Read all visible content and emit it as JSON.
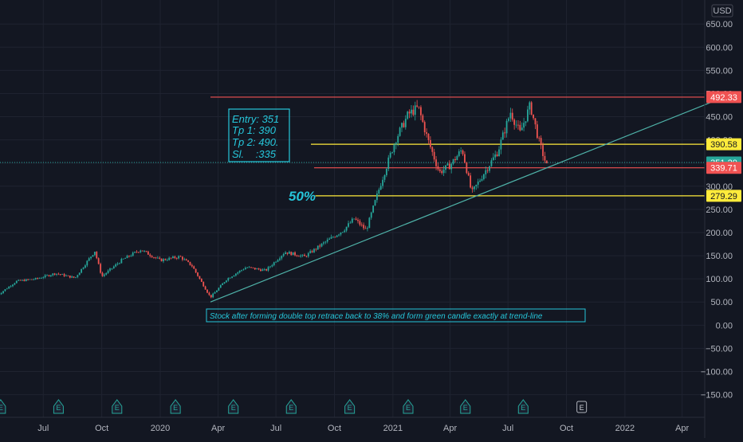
{
  "chart_data": {
    "type": "candlestick",
    "currency": "USD",
    "ylim": [
      -170,
      700
    ],
    "y_ticks": [
      650,
      600,
      550,
      500,
      450,
      400,
      350,
      300,
      250,
      200,
      150,
      100,
      50,
      0,
      -50,
      -100,
      -150
    ],
    "y_tick_labels": [
      "650.00",
      "600.00",
      "550.00",
      "500.00",
      "450.00",
      "400.00",
      "350.00",
      "300.00",
      "250.00",
      "200.00",
      "150.00",
      "100.00",
      "50.00",
      "0.00",
      "−50.00",
      "−100.00",
      "−150.00"
    ],
    "x_labels": [
      "Jul",
      "Oct",
      "2020",
      "Apr",
      "Jul",
      "Oct",
      "2021",
      "Apr",
      "Jul",
      "Oct",
      "2022",
      "Apr"
    ],
    "x_label_dates": [
      "2019-07-01",
      "2019-10-01",
      "2020-01-01",
      "2020-04-01",
      "2020-07-01",
      "2020-10-01",
      "2021-01-01",
      "2021-04-01",
      "2021-07-01",
      "2021-10-01",
      "2022-01-01",
      "2022-04-01"
    ],
    "price_path": [
      [
        "2019-04-20",
        65
      ],
      [
        "2019-05-20",
        95
      ],
      [
        "2019-06-20",
        100
      ],
      [
        "2019-07-20",
        112
      ],
      [
        "2019-08-20",
        102
      ],
      [
        "2019-09-20",
        160
      ],
      [
        "2019-10-01",
        105
      ],
      [
        "2019-11-01",
        140
      ],
      [
        "2019-12-01",
        163
      ],
      [
        "2020-01-01",
        140
      ],
      [
        "2020-02-01",
        148
      ],
      [
        "2020-02-20",
        128
      ],
      [
        "2020-03-20",
        60
      ],
      [
        "2020-04-15",
        100
      ],
      [
        "2020-05-15",
        125
      ],
      [
        "2020-06-15",
        118
      ],
      [
        "2020-07-15",
        158
      ],
      [
        "2020-08-15",
        148
      ],
      [
        "2020-09-15",
        178
      ],
      [
        "2020-10-15",
        205
      ],
      [
        "2020-11-01",
        230
      ],
      [
        "2020-11-20",
        205
      ],
      [
        "2020-12-15",
        315
      ],
      [
        "2021-01-05",
        400
      ],
      [
        "2021-01-25",
        455
      ],
      [
        "2021-02-10",
        470
      ],
      [
        "2021-02-25",
        400
      ],
      [
        "2021-03-15",
        330
      ],
      [
        "2021-04-01",
        345
      ],
      [
        "2021-04-20",
        380
      ],
      [
        "2021-05-05",
        285
      ],
      [
        "2021-05-25",
        330
      ],
      [
        "2021-06-15",
        375
      ],
      [
        "2021-07-05",
        460
      ],
      [
        "2021-07-20",
        415
      ],
      [
        "2021-08-05",
        475
      ],
      [
        "2021-08-20",
        390
      ],
      [
        "2021-09-01",
        340
      ]
    ],
    "levels": [
      {
        "value": 492.33,
        "label": "492.33",
        "color": "#f05252"
      },
      {
        "value": 390.58,
        "label": "390.58",
        "color": "#ffeb3b"
      },
      {
        "value": 351.2,
        "label": "351.20",
        "color": "#26a69a"
      },
      {
        "value": 339.71,
        "label": "339.71",
        "color": "#f05252"
      },
      {
        "value": 279.29,
        "label": "279.29",
        "color": "#ffeb3b"
      }
    ],
    "trend_line": {
      "from": [
        "2020-03-20",
        50
      ],
      "to": [
        "2022-05-20",
        483
      ]
    },
    "annotations": {
      "trade_box": [
        "Entry: 351",
        "Tp 1: 390",
        "Tp 2: 490.",
        "Sl.    :335"
      ],
      "fib": "50%",
      "note": "Stock after forming double top retrace back to 38% and form green candle exactly at trend-line"
    },
    "earnings_marker": "E",
    "earnings_dates": [
      "2019-04-25",
      "2019-07-25",
      "2019-10-25",
      "2020-01-25",
      "2020-04-25",
      "2020-07-25",
      "2020-10-25",
      "2021-01-25",
      "2021-04-25",
      "2021-07-25",
      "2021-10-25"
    ]
  },
  "colors": {
    "background": "#131722",
    "up": "#26a69a",
    "down": "#ef5350",
    "grid": "#1f2330",
    "axis_text": "#b2b5be",
    "trend": "#4fb3a9",
    "annotation": "#26c6da"
  }
}
